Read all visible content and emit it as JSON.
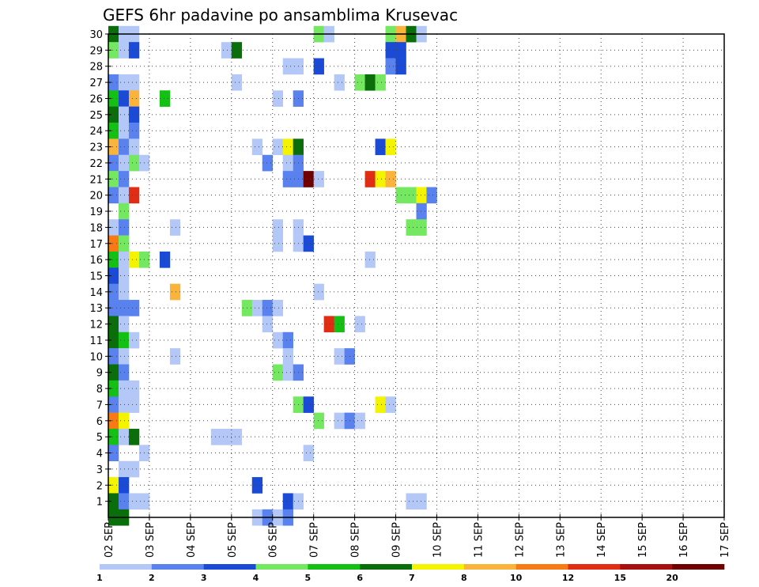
{
  "chart_data": {
    "type": "heatmap",
    "title": "GEFS 6hr padavine po ansamblima Krusevac",
    "xlabel": "",
    "ylabel": "",
    "x_tick_labels": [
      "02 SEP",
      "03 SEP",
      "04 SEP",
      "05 SEP",
      "06 SEP",
      "07 SEP",
      "08 SEP",
      "09 SEP",
      "10 SEP",
      "11 SEP",
      "12 SEP",
      "13 SEP",
      "14 SEP",
      "15 SEP",
      "16 SEP",
      "17 SEP"
    ],
    "y_tick_labels": [
      "1",
      "2",
      "3",
      "4",
      "5",
      "6",
      "7",
      "8",
      "9",
      "10",
      "11",
      "12",
      "13",
      "14",
      "15",
      "16",
      "17",
      "18",
      "19",
      "20",
      "21",
      "22",
      "23",
      "24",
      "25",
      "26",
      "27",
      "28",
      "29",
      "30"
    ],
    "xlim_days": [
      0,
      15
    ],
    "ylim_members": [
      0,
      30
    ],
    "time_step_hours": 6,
    "grid": true,
    "colorbar": {
      "position": "bottom",
      "levels": [
        1,
        2,
        3,
        4,
        5,
        6,
        7,
        8,
        10,
        12,
        15,
        20
      ],
      "tick_labels": [
        "1",
        "2",
        "3",
        "4",
        "5",
        "6",
        "7",
        "8",
        "10",
        "12",
        "15",
        "20"
      ],
      "colors": [
        "#b4c8f8",
        "#5a82ee",
        "#1a4ad6",
        "#74e860",
        "#13c013",
        "#0a6e0a",
        "#f4f400",
        "#fab43c",
        "#f87a14",
        "#e12d14",
        "#a81010",
        "#6e0000"
      ]
    },
    "cells": [
      [
        30,
        0,
        5
      ],
      [
        30,
        1,
        0
      ],
      [
        30,
        2,
        0
      ],
      [
        30,
        20,
        3
      ],
      [
        30,
        21,
        0
      ],
      [
        30,
        27,
        3
      ],
      [
        30,
        28,
        7
      ],
      [
        30,
        29,
        5
      ],
      [
        30,
        30,
        0
      ],
      [
        29,
        0,
        3
      ],
      [
        29,
        1,
        0
      ],
      [
        29,
        2,
        2
      ],
      [
        29,
        11,
        0
      ],
      [
        29,
        12,
        5
      ],
      [
        29,
        27,
        2
      ],
      [
        29,
        28,
        2
      ],
      [
        28,
        17,
        0
      ],
      [
        28,
        18,
        0
      ],
      [
        28,
        20,
        2
      ],
      [
        28,
        27,
        1
      ],
      [
        28,
        28,
        2
      ],
      [
        27,
        0,
        1
      ],
      [
        27,
        1,
        0
      ],
      [
        27,
        2,
        0
      ],
      [
        27,
        12,
        0
      ],
      [
        27,
        22,
        0
      ],
      [
        27,
        24,
        3
      ],
      [
        27,
        25,
        5
      ],
      [
        27,
        26,
        3
      ],
      [
        26,
        0,
        4
      ],
      [
        26,
        1,
        2
      ],
      [
        26,
        2,
        7
      ],
      [
        26,
        5,
        4
      ],
      [
        26,
        16,
        0
      ],
      [
        26,
        18,
        1
      ],
      [
        25,
        0,
        5
      ],
      [
        25,
        1,
        0
      ],
      [
        25,
        2,
        2
      ],
      [
        24,
        0,
        4
      ],
      [
        24,
        1,
        0
      ],
      [
        24,
        2,
        1
      ],
      [
        23,
        0,
        7
      ],
      [
        23,
        1,
        1
      ],
      [
        23,
        2,
        0
      ],
      [
        23,
        14,
        0
      ],
      [
        23,
        16,
        0
      ],
      [
        23,
        17,
        6
      ],
      [
        23,
        18,
        5
      ],
      [
        23,
        26,
        2
      ],
      [
        23,
        27,
        6
      ],
      [
        22,
        0,
        1
      ],
      [
        22,
        1,
        0
      ],
      [
        22,
        2,
        3
      ],
      [
        22,
        3,
        0
      ],
      [
        22,
        15,
        1
      ],
      [
        22,
        17,
        0
      ],
      [
        22,
        18,
        1
      ],
      [
        21,
        0,
        3
      ],
      [
        21,
        1,
        1
      ],
      [
        21,
        17,
        1
      ],
      [
        21,
        18,
        1
      ],
      [
        21,
        19,
        11
      ],
      [
        21,
        20,
        0
      ],
      [
        21,
        25,
        9
      ],
      [
        21,
        26,
        6
      ],
      [
        21,
        27,
        7
      ],
      [
        20,
        0,
        1
      ],
      [
        20,
        1,
        0
      ],
      [
        20,
        2,
        9
      ],
      [
        20,
        28,
        3
      ],
      [
        20,
        29,
        3
      ],
      [
        20,
        30,
        6
      ],
      [
        20,
        31,
        1
      ],
      [
        19,
        1,
        3
      ],
      [
        19,
        30,
        1
      ],
      [
        18,
        0,
        0
      ],
      [
        18,
        1,
        1
      ],
      [
        18,
        6,
        0
      ],
      [
        18,
        16,
        0
      ],
      [
        18,
        18,
        0
      ],
      [
        18,
        29,
        3
      ],
      [
        18,
        30,
        3
      ],
      [
        17,
        0,
        8
      ],
      [
        17,
        1,
        3
      ],
      [
        17,
        16,
        0
      ],
      [
        17,
        18,
        0
      ],
      [
        17,
        19,
        2
      ],
      [
        16,
        0,
        4
      ],
      [
        16,
        1,
        0
      ],
      [
        16,
        2,
        6
      ],
      [
        16,
        3,
        3
      ],
      [
        16,
        5,
        2
      ],
      [
        16,
        25,
        0
      ],
      [
        15,
        0,
        2
      ],
      [
        15,
        1,
        0
      ],
      [
        14,
        0,
        1
      ],
      [
        14,
        1,
        0
      ],
      [
        14,
        6,
        7
      ],
      [
        14,
        20,
        0
      ],
      [
        13,
        0,
        1
      ],
      [
        13,
        1,
        1
      ],
      [
        13,
        2,
        1
      ],
      [
        13,
        13,
        3
      ],
      [
        13,
        14,
        0
      ],
      [
        13,
        15,
        1
      ],
      [
        13,
        16,
        0
      ],
      [
        12,
        0,
        5
      ],
      [
        12,
        1,
        0
      ],
      [
        12,
        15,
        0
      ],
      [
        12,
        21,
        9
      ],
      [
        12,
        22,
        4
      ],
      [
        12,
        24,
        0
      ],
      [
        11,
        0,
        5
      ],
      [
        11,
        1,
        4
      ],
      [
        11,
        2,
        0
      ],
      [
        11,
        16,
        0
      ],
      [
        11,
        17,
        1
      ],
      [
        10,
        0,
        1
      ],
      [
        10,
        1,
        0
      ],
      [
        10,
        6,
        0
      ],
      [
        10,
        17,
        0
      ],
      [
        10,
        22,
        0
      ],
      [
        10,
        23,
        1
      ],
      [
        9,
        0,
        5
      ],
      [
        9,
        1,
        1
      ],
      [
        9,
        16,
        3
      ],
      [
        9,
        17,
        0
      ],
      [
        9,
        18,
        1
      ],
      [
        8,
        0,
        4
      ],
      [
        8,
        1,
        0
      ],
      [
        8,
        2,
        0
      ],
      [
        7,
        0,
        1
      ],
      [
        7,
        1,
        0
      ],
      [
        7,
        2,
        0
      ],
      [
        7,
        18,
        3
      ],
      [
        7,
        19,
        2
      ],
      [
        7,
        26,
        6
      ],
      [
        7,
        27,
        0
      ],
      [
        6,
        0,
        8
      ],
      [
        6,
        1,
        6
      ],
      [
        6,
        20,
        3
      ],
      [
        6,
        22,
        0
      ],
      [
        6,
        23,
        1
      ],
      [
        6,
        24,
        0
      ],
      [
        5,
        0,
        4
      ],
      [
        5,
        1,
        0
      ],
      [
        5,
        2,
        5
      ],
      [
        5,
        10,
        0
      ],
      [
        5,
        11,
        0
      ],
      [
        5,
        12,
        0
      ],
      [
        4,
        0,
        1
      ],
      [
        4,
        3,
        0
      ],
      [
        4,
        19,
        0
      ],
      [
        3,
        1,
        0
      ],
      [
        3,
        2,
        0
      ],
      [
        2,
        0,
        6
      ],
      [
        2,
        1,
        2
      ],
      [
        2,
        14,
        2
      ],
      [
        1,
        0,
        5
      ],
      [
        1,
        1,
        1
      ],
      [
        1,
        2,
        0
      ],
      [
        1,
        3,
        0
      ],
      [
        1,
        17,
        2
      ],
      [
        1,
        18,
        0
      ],
      [
        1,
        29,
        0
      ],
      [
        1,
        30,
        0
      ],
      [
        0,
        0,
        5
      ],
      [
        0,
        1,
        5
      ],
      [
        0,
        14,
        0
      ],
      [
        0,
        15,
        1
      ],
      [
        0,
        16,
        0
      ],
      [
        0,
        17,
        1
      ]
    ]
  }
}
